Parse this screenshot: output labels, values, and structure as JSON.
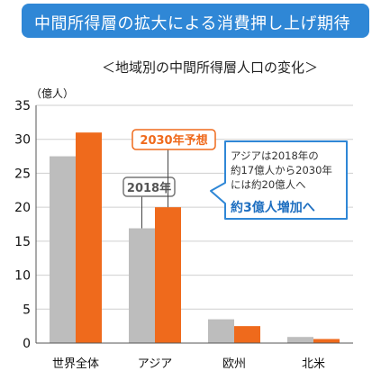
{
  "banner": {
    "title": "中間所得層の拡大による消費押し上げ期待"
  },
  "chart_data": {
    "type": "bar",
    "title": "＜地域別の中間所得層人口の変化＞",
    "unit": "（億人）",
    "categories": [
      "世界全体",
      "アジア",
      "欧州",
      "北米"
    ],
    "series": [
      {
        "name": "2018年",
        "values": [
          27.5,
          16.9,
          3.5,
          0.9
        ]
      },
      {
        "name": "2030年予想",
        "values": [
          31.0,
          20.0,
          2.5,
          0.6
        ]
      }
    ],
    "ylim": [
      0,
      35
    ],
    "yticks": [
      0,
      5,
      10,
      15,
      20,
      25,
      30,
      35
    ],
    "grid": true,
    "colors": {
      "s2018": "#bdbdbd",
      "s2030": "#ef6a1c",
      "accent_blue": "#2f87d6",
      "label_gray": "#777777"
    },
    "annotation": {
      "lines": [
        "アジアは2018年の",
        "約17億人から2030年",
        "には約20億人へ"
      ],
      "highlight": "約3億人増加へ"
    }
  }
}
